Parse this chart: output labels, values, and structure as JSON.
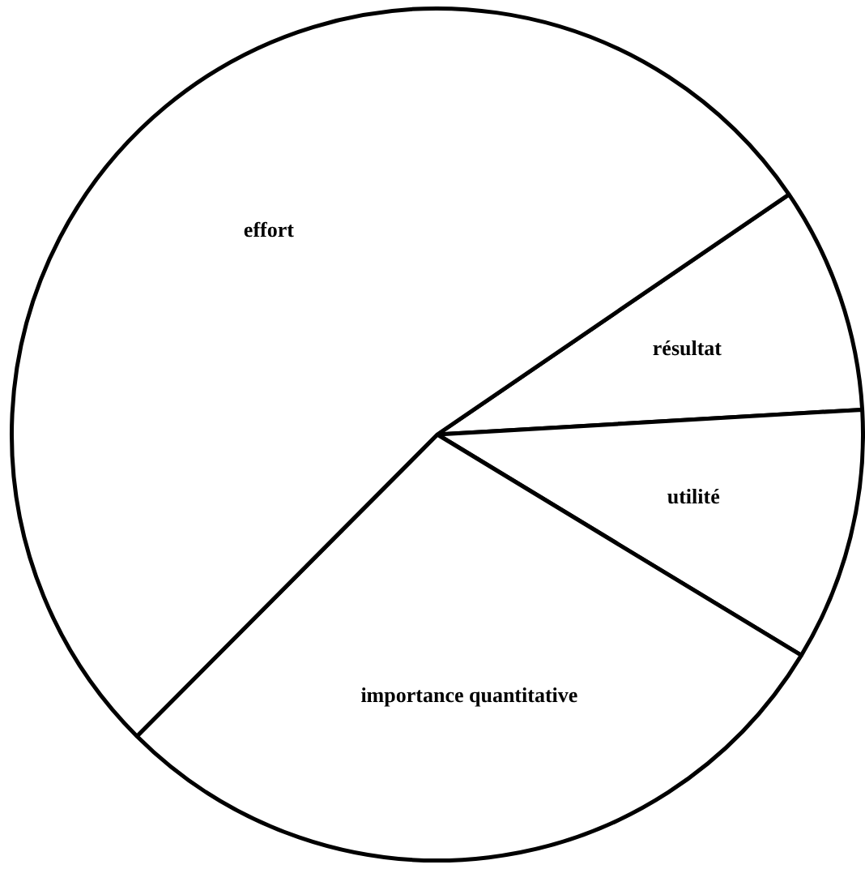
{
  "chart_data": {
    "type": "pie",
    "categories": [
      "résultat",
      "utilité",
      "importance quantitative",
      "effort"
    ],
    "values": [
      8.6,
      9.6,
      28.8,
      53.0
    ],
    "colors": [
      "#ffffff",
      "#ffffff",
      "#ffffff",
      "#ffffff"
    ],
    "legend": false
  }
}
